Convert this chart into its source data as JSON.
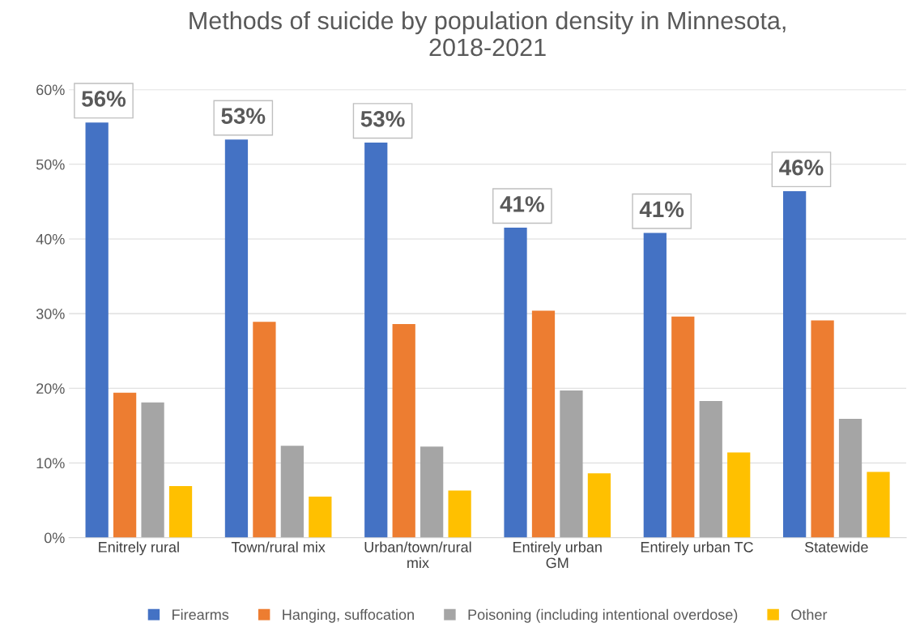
{
  "chart_data": {
    "type": "bar",
    "title": "Methods of suicide by population density in Minnesota,\n2018-2021",
    "categories": [
      "Enitrely rural",
      "Town/rural mix",
      "Urban/town/rural\nmix",
      "Entirely urban\nGM",
      "Entirely urban TC",
      "Statewide"
    ],
    "series": [
      {
        "name": "Firearms",
        "color": "#4472c4",
        "values": [
          55.6,
          53.3,
          52.9,
          41.5,
          40.8,
          46.4
        ],
        "value_labels": [
          "56%",
          "53%",
          "53%",
          "41%",
          "41%",
          "46%"
        ]
      },
      {
        "name": "Hanging, suffocation",
        "color": "#ed7d31",
        "values": [
          19.4,
          28.9,
          28.6,
          30.4,
          29.6,
          29.1
        ]
      },
      {
        "name": "Poisoning (including intentional overdose)",
        "color": "#a5a5a5",
        "values": [
          18.1,
          12.3,
          12.2,
          19.7,
          18.3,
          15.9
        ]
      },
      {
        "name": "Other",
        "color": "#ffc000",
        "values": [
          6.9,
          5.5,
          6.3,
          8.6,
          11.4,
          8.8
        ]
      }
    ],
    "ylim": [
      0,
      60
    ],
    "yticks": [
      {
        "value": 0,
        "label": "0%"
      },
      {
        "value": 10,
        "label": "10%"
      },
      {
        "value": 20,
        "label": "20%"
      },
      {
        "value": 30,
        "label": "30%"
      },
      {
        "value": 40,
        "label": "40%"
      },
      {
        "value": 50,
        "label": "50%"
      },
      {
        "value": 60,
        "label": "60%"
      }
    ],
    "grid": "y",
    "legend": "bottom"
  }
}
